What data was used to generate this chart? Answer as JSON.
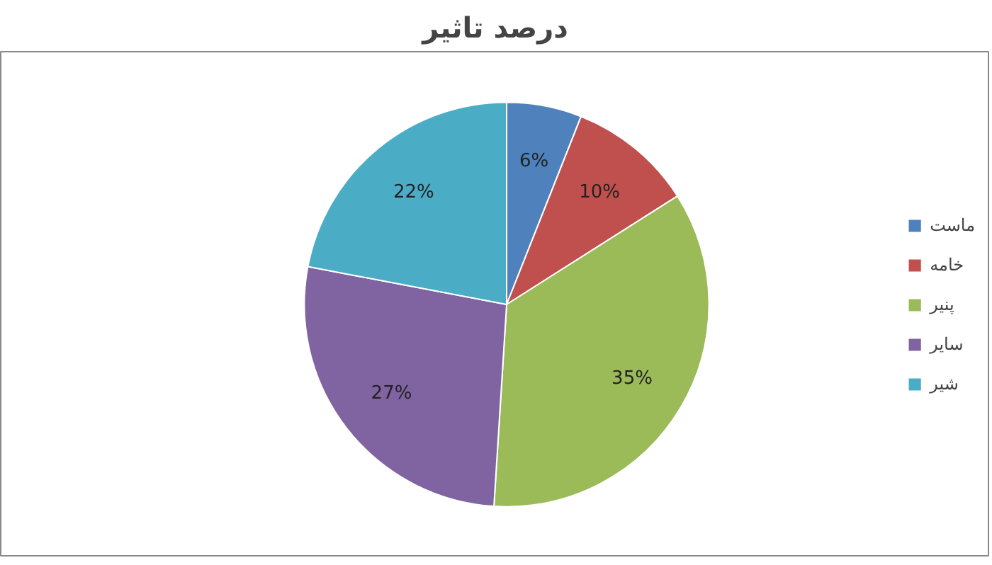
{
  "chart_data": {
    "type": "pie",
    "title": "درصد تاثیر",
    "categories": [
      "ماست",
      "خامه",
      "پنیر",
      "سایر",
      "شیر"
    ],
    "values": [
      6,
      10,
      35,
      27,
      22
    ],
    "colors": [
      "#4f81bd",
      "#c0504d",
      "#9bbb59",
      "#8064a2",
      "#4bacc6"
    ],
    "value_labels": [
      "6%",
      "10%",
      "35%",
      "27%",
      "22%"
    ],
    "legend": "right"
  }
}
